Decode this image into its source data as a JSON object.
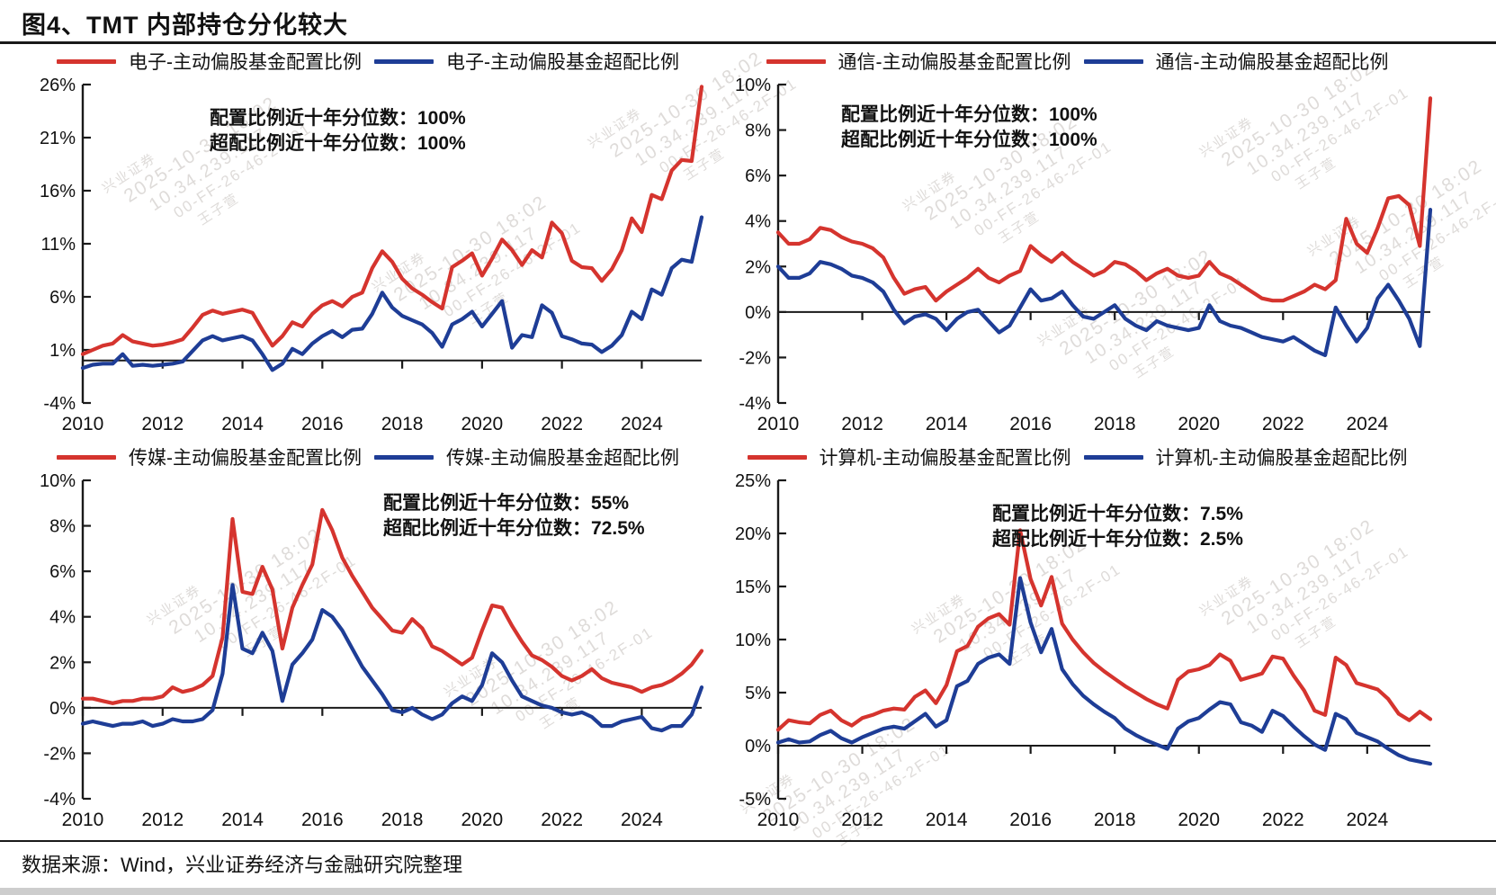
{
  "page": {
    "title": "图4、TMT 内部持仓分化较大",
    "source": "数据来源：Wind，兴业证券经济与金融研究院整理"
  },
  "colors": {
    "allocation_red": "#d5342e",
    "overweight_blue": "#1e3d96",
    "axis": "#1a1a1a"
  },
  "watermark": {
    "lines": [
      "兴业证券",
      "2025-10-30 18:02",
      "10.34.239.117",
      "00-FF-26-46-2F-01",
      "王子萱"
    ]
  },
  "chart_data": [
    {
      "type": "line",
      "sector": "电子",
      "legend": [
        {
          "label": "电子-主动偏股基金配置比例",
          "color_key": "allocation_red"
        },
        {
          "label": "电子-主动偏股基金超配比例",
          "color_key": "overweight_blue"
        }
      ],
      "annotation": {
        "line1": "配置比例近十年分位数：100%",
        "line2": "超配比例近十年分位数：100%"
      },
      "x_start": 2010,
      "x_step": 0.25,
      "x_tick_labels": [
        "2010",
        "2012",
        "2014",
        "2016",
        "2018",
        "2020",
        "2022",
        "2024"
      ],
      "ylim": [
        -4,
        26
      ],
      "y_ticks": [
        26,
        21,
        16,
        11,
        6,
        1,
        -4
      ],
      "grid": false,
      "legend_position": "top",
      "series": [
        {
          "name": "配置比例",
          "values": [
            0.6,
            1.0,
            1.4,
            1.6,
            2.4,
            1.8,
            1.6,
            1.4,
            1.5,
            1.7,
            2.0,
            3.1,
            4.3,
            4.7,
            4.4,
            4.6,
            4.8,
            4.5,
            2.9,
            1.4,
            2.3,
            3.6,
            3.2,
            4.4,
            5.2,
            5.6,
            5.1,
            6.0,
            6.4,
            8.7,
            10.3,
            9.3,
            7.7,
            6.8,
            6.2,
            5.5,
            4.9,
            8.8,
            9.4,
            10.1,
            8.0,
            9.6,
            11.4,
            10.4,
            9.0,
            10.4,
            9.7,
            13.0,
            12.0,
            9.4,
            8.8,
            8.7,
            7.5,
            8.6,
            10.4,
            13.4,
            12.1,
            15.6,
            15.2,
            17.9,
            18.9,
            18.8,
            25.8
          ]
        },
        {
          "name": "超配比例",
          "values": [
            -0.7,
            -0.4,
            -0.3,
            -0.3,
            0.6,
            -0.5,
            -0.4,
            -0.5,
            -0.4,
            -0.3,
            -0.1,
            0.9,
            1.9,
            2.3,
            1.9,
            2.1,
            2.3,
            1.9,
            0.6,
            -0.9,
            -0.3,
            1.1,
            0.6,
            1.6,
            2.3,
            2.8,
            2.2,
            2.9,
            3.0,
            4.4,
            6.4,
            5.0,
            4.2,
            3.8,
            3.4,
            2.6,
            1.3,
            3.4,
            3.9,
            4.6,
            3.2,
            4.4,
            5.6,
            1.2,
            2.4,
            2.2,
            5.2,
            4.5,
            2.3,
            2.0,
            1.6,
            1.5,
            0.8,
            1.4,
            2.4,
            4.6,
            3.9,
            6.7,
            6.2,
            8.7,
            9.5,
            9.3,
            13.5
          ]
        }
      ]
    },
    {
      "type": "line",
      "sector": "通信",
      "legend": [
        {
          "label": "通信-主动偏股基金配置比例",
          "color_key": "allocation_red"
        },
        {
          "label": "通信-主动偏股基金超配比例",
          "color_key": "overweight_blue"
        }
      ],
      "annotation": {
        "line1": "配置比例近十年分位数：100%",
        "line2": "超配比例近十年分位数：100%"
      },
      "x_start": 2010,
      "x_step": 0.25,
      "x_tick_labels": [
        "2010",
        "2012",
        "2014",
        "2016",
        "2018",
        "2020",
        "2022",
        "2024"
      ],
      "ylim": [
        -4,
        10
      ],
      "y_ticks": [
        10,
        8,
        6,
        4,
        2,
        0,
        -2,
        -4
      ],
      "grid": false,
      "legend_position": "top",
      "series": [
        {
          "name": "配置比例",
          "values": [
            3.5,
            3.0,
            3.0,
            3.2,
            3.7,
            3.6,
            3.3,
            3.1,
            3.0,
            2.8,
            2.4,
            1.5,
            0.8,
            1.0,
            1.1,
            0.5,
            0.9,
            1.2,
            1.5,
            1.9,
            1.5,
            1.3,
            1.6,
            1.8,
            2.9,
            2.5,
            2.2,
            2.6,
            2.2,
            1.9,
            1.6,
            1.8,
            2.2,
            2.1,
            1.8,
            1.4,
            1.7,
            1.9,
            1.6,
            1.5,
            1.6,
            2.2,
            1.7,
            1.5,
            1.2,
            0.9,
            0.6,
            0.5,
            0.5,
            0.7,
            0.9,
            1.2,
            1.0,
            1.4,
            4.1,
            3.0,
            2.6,
            3.7,
            5.0,
            5.1,
            4.7,
            2.9,
            9.4
          ]
        },
        {
          "name": "超配比例",
          "values": [
            2.0,
            1.5,
            1.5,
            1.7,
            2.2,
            2.1,
            1.9,
            1.6,
            1.5,
            1.3,
            0.9,
            0.1,
            -0.5,
            -0.2,
            -0.1,
            -0.3,
            -0.8,
            -0.3,
            0.0,
            0.1,
            -0.4,
            -0.9,
            -0.6,
            0.2,
            1.0,
            0.5,
            0.6,
            0.9,
            0.3,
            -0.2,
            -0.3,
            0.0,
            0.3,
            -0.3,
            -0.6,
            -0.8,
            -0.4,
            -0.6,
            -0.7,
            -0.8,
            -0.7,
            0.3,
            -0.4,
            -0.6,
            -0.7,
            -0.9,
            -1.1,
            -1.2,
            -1.3,
            -1.1,
            -1.4,
            -1.7,
            -1.9,
            0.2,
            -0.6,
            -1.3,
            -0.7,
            0.6,
            1.2,
            0.5,
            -0.3,
            -1.5,
            4.5
          ]
        }
      ]
    },
    {
      "type": "line",
      "sector": "传媒",
      "legend": [
        {
          "label": "传媒-主动偏股基金配置比例",
          "color_key": "allocation_red"
        },
        {
          "label": "传媒-主动偏股基金超配比例",
          "color_key": "overweight_blue"
        }
      ],
      "annotation": {
        "line1": "配置比例近十年分位数：55%",
        "line2": "超配比例近十年分位数：72.5%"
      },
      "x_start": 2010,
      "x_step": 0.25,
      "x_tick_labels": [
        "2010",
        "2012",
        "2014",
        "2016",
        "2018",
        "2020",
        "2022",
        "2024"
      ],
      "ylim": [
        -4,
        10
      ],
      "y_ticks": [
        10,
        8,
        6,
        4,
        2,
        0,
        -2,
        -4
      ],
      "grid": false,
      "legend_position": "top",
      "series": [
        {
          "name": "配置比例",
          "values": [
            0.4,
            0.4,
            0.3,
            0.2,
            0.3,
            0.3,
            0.4,
            0.4,
            0.5,
            0.9,
            0.7,
            0.8,
            1.0,
            1.4,
            3.1,
            8.3,
            5.1,
            5.0,
            6.2,
            5.2,
            2.6,
            4.4,
            5.4,
            6.3,
            8.7,
            7.8,
            6.6,
            5.8,
            5.1,
            4.4,
            3.9,
            3.4,
            3.3,
            3.9,
            3.5,
            2.7,
            2.5,
            2.2,
            1.9,
            2.2,
            3.4,
            4.5,
            4.4,
            3.6,
            2.9,
            2.3,
            2.1,
            1.8,
            1.4,
            1.2,
            1.4,
            1.7,
            1.3,
            1.1,
            1.0,
            0.9,
            0.7,
            0.9,
            1.0,
            1.2,
            1.5,
            1.9,
            2.5
          ]
        },
        {
          "name": "超配比例",
          "values": [
            -0.7,
            -0.6,
            -0.7,
            -0.8,
            -0.7,
            -0.7,
            -0.6,
            -0.8,
            -0.7,
            -0.5,
            -0.6,
            -0.6,
            -0.5,
            -0.1,
            1.5,
            5.4,
            2.6,
            2.4,
            3.3,
            2.5,
            0.3,
            1.9,
            2.4,
            3.0,
            4.3,
            4.0,
            3.4,
            2.6,
            1.8,
            1.2,
            0.6,
            -0.1,
            -0.2,
            0.0,
            -0.3,
            -0.5,
            -0.3,
            0.2,
            0.5,
            0.3,
            1.0,
            2.4,
            2.0,
            1.2,
            0.5,
            0.3,
            0.1,
            0.0,
            -0.2,
            -0.3,
            -0.2,
            -0.4,
            -0.8,
            -0.8,
            -0.6,
            -0.5,
            -0.4,
            -0.9,
            -1.0,
            -0.8,
            -0.8,
            -0.3,
            0.9
          ]
        }
      ]
    },
    {
      "type": "line",
      "sector": "计算机",
      "legend": [
        {
          "label": "计算机-主动偏股基金配置比例",
          "color_key": "allocation_red"
        },
        {
          "label": "计算机-主动偏股基金超配比例",
          "color_key": "overweight_blue"
        }
      ],
      "annotation": {
        "line1": "配置比例近十年分位数：7.5%",
        "line2": "超配比例近十年分位数：2.5%"
      },
      "x_start": 2010,
      "x_step": 0.25,
      "x_tick_labels": [
        "2010",
        "2012",
        "2014",
        "2016",
        "2018",
        "2020",
        "2022",
        "2024"
      ],
      "ylim": [
        -5,
        25
      ],
      "y_ticks": [
        25,
        20,
        15,
        10,
        5,
        0,
        -5
      ],
      "grid": false,
      "legend_position": "top",
      "series": [
        {
          "name": "配置比例",
          "values": [
            1.5,
            2.4,
            2.2,
            2.1,
            2.9,
            3.3,
            2.4,
            1.9,
            2.6,
            2.9,
            3.3,
            3.5,
            3.4,
            4.6,
            5.2,
            4.0,
            5.7,
            8.9,
            9.4,
            11.2,
            12.0,
            12.4,
            11.4,
            20.3,
            15.7,
            13.2,
            15.9,
            11.5,
            10.0,
            8.8,
            7.8,
            7.0,
            6.3,
            5.6,
            5.0,
            4.4,
            3.9,
            3.5,
            6.2,
            7.0,
            7.2,
            7.6,
            8.6,
            8.0,
            6.2,
            6.5,
            6.8,
            8.4,
            8.2,
            6.6,
            5.2,
            3.3,
            2.9,
            8.3,
            7.6,
            5.9,
            5.6,
            5.3,
            4.4,
            3.0,
            2.4,
            3.2,
            2.5
          ]
        },
        {
          "name": "超配比例",
          "values": [
            0.3,
            0.6,
            0.3,
            0.4,
            1.0,
            1.4,
            0.7,
            0.3,
            0.8,
            1.2,
            1.6,
            1.8,
            1.6,
            2.3,
            3.0,
            1.8,
            2.4,
            5.6,
            6.1,
            7.7,
            8.3,
            8.6,
            7.7,
            15.8,
            11.6,
            8.8,
            11.0,
            7.2,
            5.8,
            4.7,
            3.9,
            3.2,
            2.6,
            1.6,
            1.0,
            0.5,
            0.1,
            -0.3,
            1.6,
            2.3,
            2.6,
            3.4,
            4.1,
            3.9,
            2.2,
            1.9,
            1.3,
            3.3,
            2.8,
            1.8,
            0.9,
            0.1,
            -0.4,
            3.0,
            2.5,
            1.2,
            0.8,
            0.4,
            -0.3,
            -0.9,
            -1.3,
            -1.5,
            -1.7
          ]
        }
      ]
    }
  ]
}
